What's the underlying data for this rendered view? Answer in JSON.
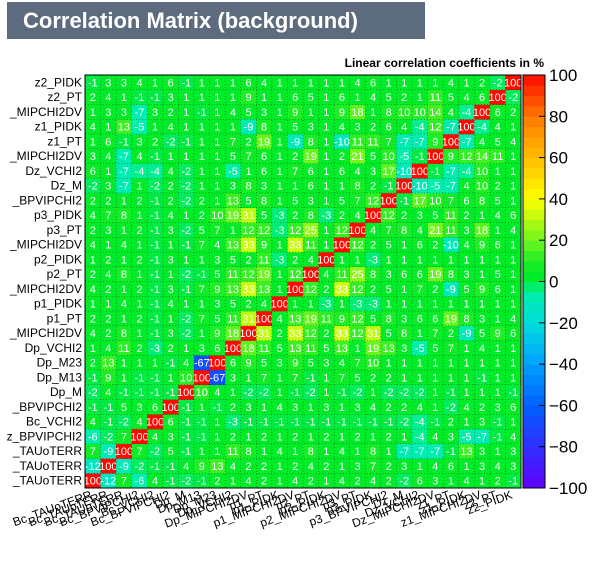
{
  "chart_data": {
    "type": "heatmap",
    "title": "Correlation Matrix (background)",
    "subtitle": "Linear correlation coefficients in %",
    "variables": [
      "Bc_TAUoTERR",
      "Bc_TAUoTERR",
      "Bc_TAUoTERR",
      "Bc_BPVIPCHI2",
      "Bc_VCHI2",
      "Bc_BPVIPCHI2",
      "Dp_M",
      "Dp_M13",
      "Dp_M23",
      "Dp_VCHI2",
      "Dp_MIPCHI2DV",
      "p1_PT",
      "p1_PIDK",
      "p1_MIPCHI2DV",
      "p2_PT",
      "p2_PIDK",
      "p2_MIPCHI2DV",
      "p3_PT",
      "p3_PIDK",
      "p3_BPVIPCHI2",
      "Dz_M",
      "Dz_VCHI2",
      "Dz_MIPCHI2DV",
      "z1_PT",
      "z1_PIDK",
      "z1_MIPCHI2DV",
      "z2_PT",
      "z2_PIDK"
    ],
    "y_tick_labels": [
      "_TAUoTERR",
      "_TAUoTERR",
      "_TAUoTERR",
      "z_BPVIPCHI2",
      "Bc_VCHI2",
      "_BPVIPCHI2",
      "Dp_M",
      "Dp_M13",
      "Dp_M23",
      "Dp_VCHI2",
      "_MIPCHI2DV",
      "p1_PT",
      "p1_PIDK",
      "_MIPCHI2DV",
      "p2_PT",
      "p2_PIDK",
      "_MIPCHI2DV",
      "p3_PT",
      "p3_PIDK",
      "_BPVIPCHI2",
      "Dz_M",
      "Dz_VCHI2",
      "_MIPCHI2DV",
      "z1_PT",
      "z1_PIDK",
      "_MIPCHI2DV",
      "z2_PT",
      "z2_PIDK"
    ],
    "x_tick_labels": [
      "Bc_TAUoTERR",
      "Bc_TAUoTERR",
      "Bc_TAUoTERR",
      "Bc_BPVIPCHI2",
      "Bc_VCHI2",
      "Bc_BPVIPCHI2",
      "Dp_M",
      "Dp_M13",
      "Dp_M23",
      "Dp_VCHI2",
      "Dp_MIPCHI2DV",
      "p1_PT",
      "p1_PIDK",
      "p1_MIPCHI2DV",
      "p2_PT",
      "p2_PIDK",
      "p2_MIPCHI2DV",
      "p3_PT",
      "p3_PIDK",
      "p3_BPVIPCHI2",
      "Dz_M",
      "Dz_VCHI2",
      "Dz_MIPCHI2DV",
      "z1_PT",
      "z1_PIDK",
      "z1_MIPCHI2DV",
      "z2_PT",
      "z2_PIDK"
    ],
    "matrix": [
      [
        100,
        -12,
        7,
        -6,
        4,
        -1,
        -2,
        -1,
        2,
        1,
        4,
        2,
        1,
        4,
        2,
        1,
        4,
        2,
        4,
        2,
        -2,
        6,
        3,
        1,
        4,
        1,
        2,
        -1
      ],
      [
        -12,
        100,
        -9,
        -2,
        -1,
        -1,
        4,
        9,
        13,
        4,
        2,
        2,
        1,
        2,
        4,
        2,
        1,
        3,
        7,
        2,
        3,
        1,
        4,
        6,
        1,
        3,
        4,
        3
      ],
      [
        7,
        -9,
        100,
        7,
        -2,
        5,
        -1,
        1,
        1,
        11,
        8,
        1,
        4,
        1,
        8,
        1,
        4,
        1,
        8,
        1,
        -7,
        -7,
        -7,
        -1,
        13,
        3,
        1,
        3
      ],
      [
        -6,
        -2,
        7,
        100,
        4,
        3,
        -1,
        -1,
        1,
        2,
        1,
        2,
        1,
        2,
        1,
        2,
        1,
        2,
        1,
        2,
        1,
        -4,
        4,
        3,
        -5,
        -7,
        -1,
        4
      ],
      [
        4,
        -1,
        -2,
        4,
        100,
        6,
        -1,
        -1,
        1,
        -3,
        -1,
        -1,
        -1,
        -1,
        -1,
        -1,
        -1,
        -1,
        -1,
        -1,
        -2,
        -4,
        -1,
        2,
        1,
        3,
        -1,
        1
      ],
      [
        -1,
        -1,
        5,
        3,
        6,
        100,
        -1,
        1,
        -1,
        2,
        3,
        1,
        4,
        3,
        1,
        3,
        1,
        3,
        4,
        2,
        2,
        4,
        1,
        -2,
        4,
        2,
        3,
        6
      ],
      [
        -2,
        4,
        -1,
        -1,
        -1,
        -1,
        100,
        10,
        4,
        1,
        -2,
        -2,
        1,
        -1,
        -2,
        1,
        -1,
        -2,
        1,
        -2,
        -2,
        -2,
        1,
        -1,
        1,
        1,
        1,
        -1
      ],
      [
        -1,
        9,
        1,
        -1,
        -1,
        1,
        10,
        100,
        -67,
        3,
        1,
        7,
        1,
        7,
        -1,
        1,
        7,
        5,
        2,
        2,
        1,
        1,
        1,
        1,
        1,
        -1,
        1,
        1
      ],
      [
        2,
        13,
        1,
        1,
        1,
        -1,
        4,
        -67,
        100,
        6,
        9,
        5,
        3,
        9,
        5,
        3,
        4,
        7,
        10,
        1,
        1,
        1,
        1,
        1,
        1,
        1,
        1,
        1
      ],
      [
        1,
        4,
        11,
        2,
        -3,
        2,
        1,
        3,
        6,
        100,
        18,
        11,
        5,
        13,
        11,
        5,
        13,
        1,
        19,
        13,
        3,
        -5,
        5,
        7,
        1,
        4,
        1,
        1
      ],
      [
        4,
        2,
        8,
        1,
        -1,
        3,
        -2,
        1,
        9,
        18,
        100,
        31,
        2,
        33,
        12,
        2,
        33,
        12,
        31,
        5,
        8,
        1,
        7,
        2,
        -9,
        5,
        9,
        6
      ],
      [
        2,
        2,
        1,
        2,
        -1,
        1,
        -2,
        7,
        5,
        11,
        31,
        100,
        4,
        13,
        19,
        11,
        9,
        12,
        5,
        8,
        3,
        6,
        6,
        19,
        8,
        3,
        1,
        4
      ],
      [
        1,
        1,
        4,
        1,
        -1,
        4,
        1,
        1,
        3,
        5,
        2,
        4,
        100,
        1,
        1,
        -3,
        1,
        -3,
        -3,
        1,
        1,
        1,
        1,
        1,
        1,
        1,
        1,
        1
      ],
      [
        4,
        2,
        1,
        2,
        -1,
        3,
        -1,
        7,
        9,
        13,
        33,
        13,
        1,
        100,
        12,
        2,
        33,
        12,
        2,
        5,
        1,
        7,
        2,
        -9,
        5,
        9,
        6,
        1
      ],
      [
        2,
        4,
        8,
        1,
        -1,
        1,
        -2,
        -1,
        5,
        11,
        12,
        19,
        1,
        12,
        100,
        4,
        11,
        25,
        8,
        3,
        6,
        6,
        19,
        8,
        3,
        1,
        5,
        1
      ],
      [
        1,
        2,
        1,
        2,
        -1,
        3,
        1,
        1,
        3,
        5,
        2,
        11,
        -3,
        2,
        4,
        100,
        1,
        1,
        -3,
        1,
        1,
        1,
        1,
        1,
        1,
        1,
        1,
        1
      ],
      [
        4,
        1,
        4,
        1,
        -1,
        1,
        -1,
        7,
        4,
        13,
        33,
        9,
        1,
        33,
        11,
        1,
        100,
        12,
        2,
        5,
        1,
        6,
        2,
        -10,
        4,
        9,
        6,
        1
      ],
      [
        2,
        3,
        1,
        2,
        -1,
        3,
        -2,
        5,
        7,
        1,
        12,
        12,
        -3,
        12,
        25,
        1,
        12,
        100,
        4,
        7,
        8,
        4,
        21,
        11,
        3,
        18,
        1,
        4
      ],
      [
        4,
        7,
        8,
        1,
        -1,
        4,
        1,
        2,
        10,
        19,
        31,
        5,
        -3,
        2,
        8,
        -3,
        2,
        4,
        100,
        12,
        2,
        3,
        5,
        11,
        2,
        1,
        4,
        6
      ],
      [
        2,
        2,
        1,
        2,
        -1,
        2,
        -2,
        2,
        1,
        13,
        5,
        8,
        1,
        5,
        3,
        1,
        5,
        7,
        12,
        100,
        -1,
        17,
        10,
        7,
        6,
        8,
        5,
        1
      ],
      [
        -2,
        3,
        -7,
        1,
        -2,
        2,
        -2,
        1,
        1,
        3,
        8,
        3,
        1,
        1,
        6,
        1,
        1,
        8,
        2,
        -1,
        100,
        -10,
        -5,
        -7,
        4,
        10,
        2,
        1
      ],
      [
        6,
        1,
        -7,
        -4,
        -4,
        4,
        -2,
        1,
        1,
        -5,
        1,
        6,
        1,
        7,
        6,
        1,
        6,
        4,
        3,
        17,
        -10,
        100,
        -1,
        -7,
        -4,
        10,
        1,
        1
      ],
      [
        3,
        4,
        -7,
        4,
        -1,
        1,
        1,
        1,
        1,
        5,
        7,
        6,
        1,
        2,
        19,
        1,
        2,
        21,
        5,
        10,
        -5,
        -1,
        100,
        9,
        12,
        14,
        11,
        1
      ],
      [
        1,
        6,
        -1,
        3,
        2,
        -2,
        -1,
        1,
        1,
        7,
        2,
        19,
        1,
        -9,
        8,
        1,
        -10,
        11,
        11,
        7,
        -7,
        -7,
        9,
        100,
        -7,
        4,
        5,
        4
      ],
      [
        4,
        1,
        13,
        -5,
        1,
        4,
        1,
        1,
        1,
        1,
        -9,
        8,
        1,
        5,
        3,
        1,
        4,
        3,
        2,
        6,
        4,
        -4,
        12,
        -7,
        100,
        -4,
        4,
        1
      ],
      [
        1,
        3,
        3,
        -7,
        3,
        2,
        1,
        -1,
        1,
        4,
        5,
        3,
        1,
        9,
        1,
        1,
        9,
        18,
        1,
        8,
        10,
        10,
        14,
        4,
        -4,
        100,
        6,
        2
      ],
      [
        2,
        4,
        1,
        -1,
        -1,
        3,
        1,
        1,
        1,
        1,
        9,
        1,
        1,
        6,
        5,
        1,
        6,
        1,
        4,
        5,
        2,
        1,
        11,
        5,
        4,
        6,
        100,
        -2
      ],
      [
        -1,
        3,
        3,
        4,
        1,
        6,
        -1,
        1,
        1,
        1,
        6,
        4,
        1,
        1,
        1,
        1,
        1,
        4,
        6,
        1,
        1,
        1,
        1,
        4,
        1,
        2,
        -2,
        100
      ]
    ],
    "zlim": [
      -100,
      100
    ],
    "z_ticks": [
      -100,
      -80,
      -60,
      -40,
      -20,
      0,
      20,
      40,
      60,
      80,
      100
    ],
    "grid": true,
    "legend": "color bar on the right"
  }
}
